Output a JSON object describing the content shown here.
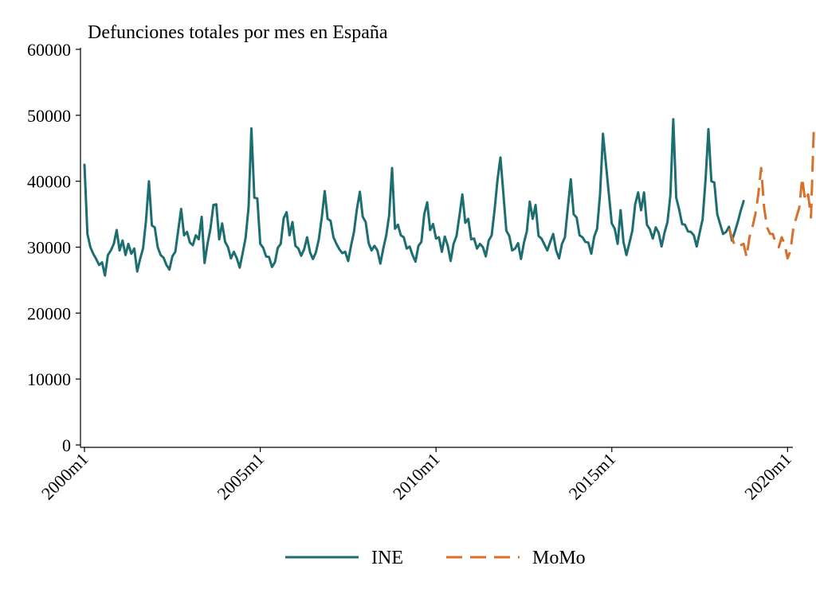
{
  "chart_data": {
    "type": "line",
    "title": "Defunciones totales por mes en España",
    "xlabel": "",
    "ylabel": "",
    "ylim": [
      0,
      60000
    ],
    "yticks": [
      0,
      10000,
      20000,
      30000,
      40000,
      50000,
      60000
    ],
    "yticklabels": [
      "0",
      "10000",
      "20000",
      "30000",
      "40000",
      "50000",
      "60000"
    ],
    "xlim": [
      2000,
      2020.083
    ],
    "xticks": [
      2000,
      2005,
      2010,
      2015,
      2020
    ],
    "xticklabels": [
      "2000m1",
      "2005m1",
      "2010m1",
      "2015m1",
      "2020m1"
    ],
    "legend_position": "bottom",
    "series": [
      {
        "name": "INE",
        "color": "#1d6e70",
        "style": "solid",
        "x_start": 2000.0,
        "step": 0.08333,
        "values": [
          42500,
          32000,
          30000,
          29000,
          28200,
          27300,
          27700,
          25700,
          28800,
          29500,
          30500,
          32600,
          29500,
          31000,
          28800,
          30500,
          29000,
          29800,
          26300,
          28200,
          29800,
          34000,
          40000,
          33300,
          33000,
          30000,
          28800,
          28400,
          27300,
          26600,
          28600,
          29300,
          32500,
          35800,
          31800,
          32300,
          30700,
          30300,
          31800,
          31200,
          34600,
          27600,
          30500,
          32800,
          36400,
          36500,
          31200,
          33600,
          30800,
          30000,
          28300,
          29300,
          28300,
          26900,
          29100,
          31400,
          36000,
          48000,
          37500,
          37400,
          30500,
          29900,
          28600,
          28500,
          27000,
          27700,
          29900,
          30500,
          34400,
          35300,
          31800,
          33800,
          30200,
          29800,
          28700,
          29700,
          31500,
          29200,
          28200,
          29200,
          31200,
          34500,
          38500,
          34300,
          34000,
          31500,
          30500,
          29700,
          29100,
          29300,
          27900,
          30200,
          32300,
          35800,
          38400,
          34600,
          33800,
          30600,
          29500,
          30200,
          29500,
          27500,
          29800,
          31800,
          34800,
          42000,
          32800,
          33400,
          31800,
          31500,
          29800,
          30100,
          28800,
          27800,
          30200,
          30800,
          35000,
          36800,
          32600,
          33500,
          31300,
          31500,
          29300,
          31600,
          30200,
          27900,
          30500,
          31700,
          34800,
          38000,
          33700,
          34300,
          31200,
          31300,
          29800,
          30500,
          30000,
          28600,
          31000,
          31800,
          35700,
          40300,
          43600,
          38100,
          32500,
          31700,
          29500,
          29800,
          30600,
          28200,
          30600,
          32400,
          36900,
          34300,
          36400,
          31700,
          31300,
          30400,
          29500,
          30800,
          32000,
          29500,
          28300,
          30500,
          31500,
          36000,
          40300,
          35000,
          34500,
          31800,
          31500,
          30800,
          30700,
          29000,
          31600,
          32800,
          38000,
          47200,
          42600,
          38000,
          33600,
          32800,
          30500,
          35600,
          30800,
          28800,
          30600,
          32500,
          36500,
          38300,
          35600,
          38300,
          33400,
          32700,
          31300,
          33000,
          32200,
          30100,
          32200,
          33800,
          37900,
          49400,
          37500,
          35700,
          33500,
          33400,
          32400,
          32300,
          31800,
          30100,
          32200,
          34200,
          40200,
          47900,
          40000,
          39800,
          35000,
          33500,
          32000,
          32300,
          33100,
          31000,
          32300,
          33800,
          35500,
          37000
        ]
      },
      {
        "name": "MoMo",
        "color": "#d8702b",
        "style": "dashed",
        "x_start": 2018.333,
        "step": 0.08333,
        "values": [
          32800,
          31500,
          30200,
          30100,
          30300,
          30500,
          28500,
          31500,
          33000,
          35000,
          38000,
          42000,
          36000,
          33000,
          32000,
          32000,
          30500,
          30000,
          31500,
          30500,
          28300,
          29500,
          33000,
          34500,
          36000,
          40500,
          37000,
          38000,
          34500,
          48500
        ]
      }
    ]
  }
}
